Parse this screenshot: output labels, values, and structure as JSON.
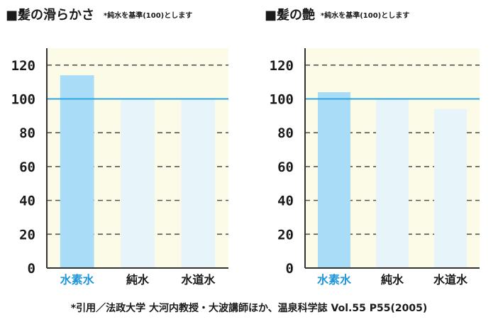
{
  "colors": {
    "plot_bg": "#fcfbe8",
    "grid_dash": "#555555",
    "axis": "#333333",
    "baseline": "#2aa5e0",
    "highlight_bar": "#a9dcf6",
    "normal_bar": "#e7f4f9",
    "highlight_label": "#1e96d8",
    "normal_label": "#1a1a1a"
  },
  "chart_data": [
    {
      "type": "bar",
      "title": "■髪の滑らかさ",
      "note": "*純水を基準(100)とします",
      "categories": [
        "水素水",
        "純水",
        "水道水"
      ],
      "values": [
        114,
        100,
        100
      ],
      "highlight_index": 0,
      "reference_line": 100,
      "ylim": [
        0,
        130
      ],
      "yticks": [
        "0",
        "20",
        "40",
        "60",
        "80",
        "100",
        "120"
      ],
      "grid": true
    },
    {
      "type": "bar",
      "title": "■髪の艶",
      "note": "*純水を基準(100)とします",
      "categories": [
        "水素水",
        "純水",
        "水道水"
      ],
      "values": [
        104,
        100,
        94
      ],
      "highlight_index": 0,
      "reference_line": 100,
      "ylim": [
        0,
        130
      ],
      "yticks": [
        "0",
        "20",
        "40",
        "60",
        "80",
        "100",
        "120"
      ],
      "grid": true
    }
  ],
  "source": "*引用／法政大学 大河内教授・大波講師ほか、温泉科学誌 Vol.55 P55(2005)"
}
